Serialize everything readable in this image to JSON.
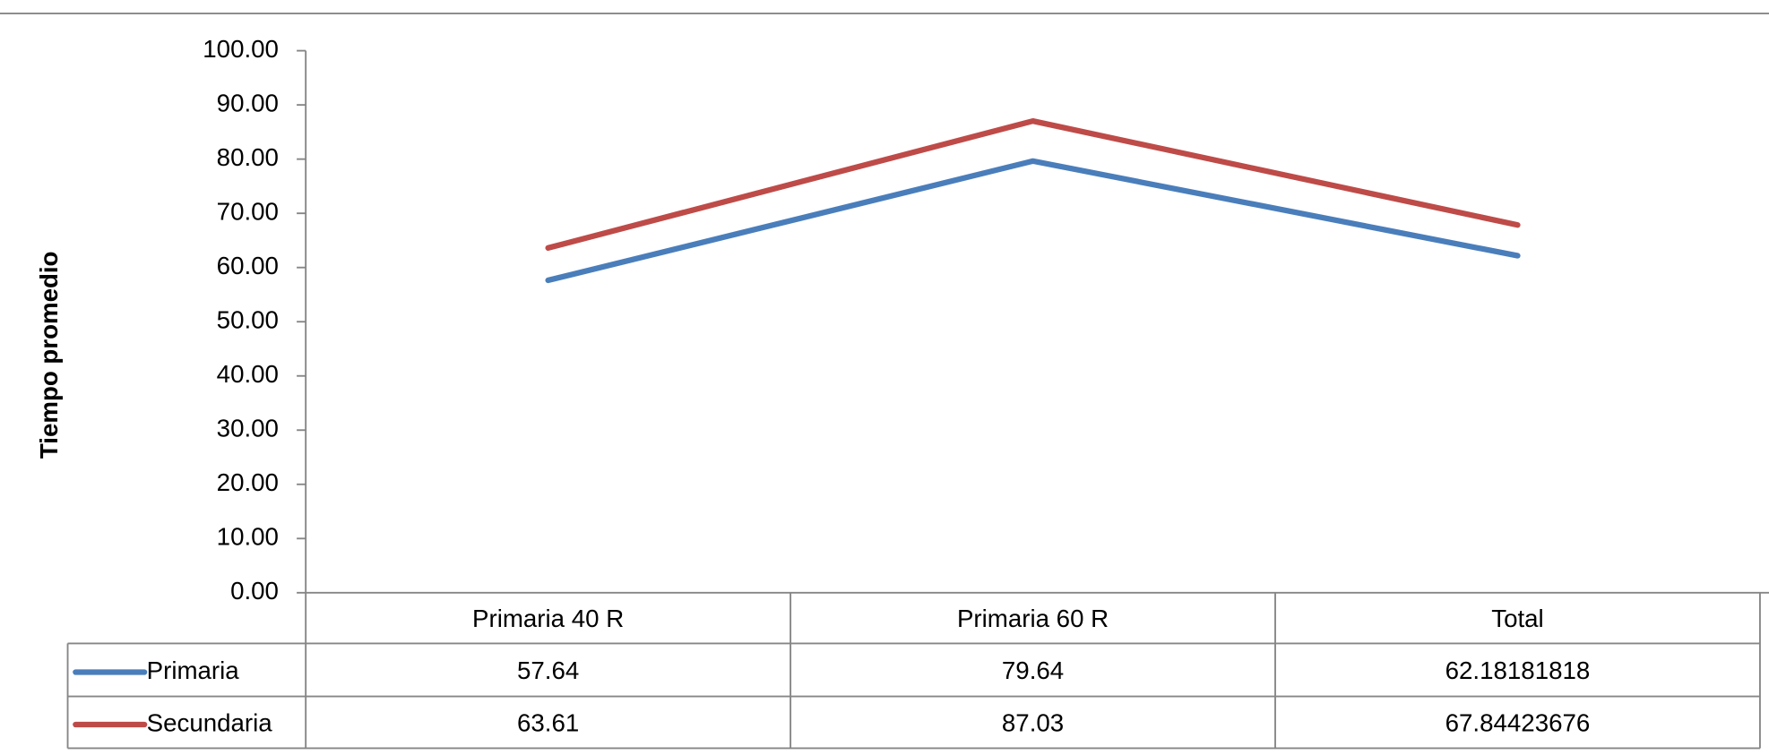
{
  "chart_data": {
    "type": "line",
    "y_label": "Tiempo promedio",
    "categories": [
      "Primaria 40 R",
      "Primaria 60 R",
      "Total"
    ],
    "series": [
      {
        "name": "Primaria",
        "color": "#4a7ebb",
        "values": [
          57.64,
          79.64,
          62.18181818
        ]
      },
      {
        "name": "Secundaria",
        "color": "#be4b48",
        "values": [
          63.61,
          87.03,
          67.84423676
        ]
      }
    ],
    "ylim": [
      0,
      100
    ],
    "yticks": [
      {
        "value": 0,
        "label": "0.00"
      },
      {
        "value": 10,
        "label": "10.00"
      },
      {
        "value": 20,
        "label": "20.00"
      },
      {
        "value": 30,
        "label": "30.00"
      },
      {
        "value": 40,
        "label": "40.00"
      },
      {
        "value": 50,
        "label": "50.00"
      },
      {
        "value": 60,
        "label": "60.00"
      },
      {
        "value": 70,
        "label": "70.00"
      },
      {
        "value": 80,
        "label": "80.00"
      },
      {
        "value": 90,
        "label": "90.00"
      },
      {
        "value": 100,
        "label": "100.00"
      }
    ],
    "data_table": true
  }
}
